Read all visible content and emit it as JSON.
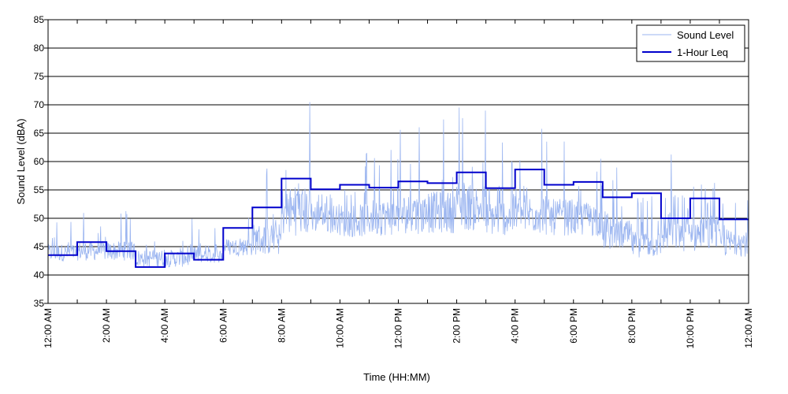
{
  "chart_data": {
    "type": "line",
    "xlabel": "Time (HH:MM)",
    "ylabel": "Sound Level (dBA)",
    "xlim": [
      0,
      24
    ],
    "ylim": [
      35,
      85
    ],
    "yticks": [
      35,
      40,
      45,
      50,
      55,
      60,
      65,
      70,
      75,
      80,
      85
    ],
    "xticks": [
      0,
      2,
      4,
      6,
      8,
      10,
      12,
      14,
      16,
      18,
      20,
      22,
      24
    ],
    "xtick_labels": [
      "12:00 AM",
      "2:00 AM",
      "4:00 AM",
      "6:00 AM",
      "8:00 AM",
      "10:00 AM",
      "12:00 PM",
      "2:00 PM",
      "4:00 PM",
      "6:00 PM",
      "8:00 PM",
      "10:00 PM",
      "12:00 AM"
    ],
    "grid": "horizontal",
    "legend_position": "top-right",
    "series": [
      {
        "name": "Sound Level",
        "color": "#9bb5f0",
        "style": "thin noisy trace",
        "hourly_range": [
          [
            41,
            51
          ],
          [
            41,
            52
          ],
          [
            41,
            52
          ],
          [
            40,
            50
          ],
          [
            40,
            50
          ],
          [
            41,
            49
          ],
          [
            42,
            52
          ],
          [
            41,
            59
          ],
          [
            43,
            71
          ],
          [
            45,
            62
          ],
          [
            44,
            63
          ],
          [
            44,
            65
          ],
          [
            44,
            67
          ],
          [
            44,
            68
          ],
          [
            44,
            71
          ],
          [
            44,
            65
          ],
          [
            44,
            67
          ],
          [
            44,
            65
          ],
          [
            44,
            64
          ],
          [
            42,
            59
          ],
          [
            41,
            56
          ],
          [
            41,
            63
          ],
          [
            41,
            62
          ],
          [
            41,
            57
          ]
        ]
      },
      {
        "name": "1-Hour Leq",
        "color": "#0000cc",
        "style": "step",
        "hours": [
          0,
          1,
          2,
          3,
          4,
          5,
          6,
          7,
          8,
          9,
          10,
          11,
          12,
          13,
          14,
          15,
          16,
          17,
          18,
          19,
          20,
          21,
          22,
          23
        ],
        "values": [
          43.5,
          45.8,
          44.2,
          41.4,
          43.8,
          42.7,
          48.3,
          51.9,
          57.0,
          55.1,
          55.9,
          55.4,
          56.5,
          56.2,
          58.1,
          55.3,
          58.6,
          55.9,
          56.4,
          53.7,
          54.4,
          50.0,
          53.5,
          49.8
        ]
      }
    ]
  }
}
